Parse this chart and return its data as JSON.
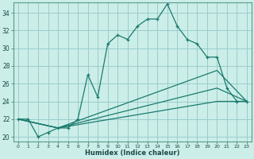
{
  "xlabel": "Humidex (Indice chaleur)",
  "bg_color": "#cceee8",
  "grid_color": "#99cccc",
  "line_color": "#1a7a6e",
  "xlim": [
    -0.5,
    23.5
  ],
  "ylim": [
    19.5,
    35.2
  ],
  "xticks": [
    0,
    1,
    2,
    3,
    4,
    5,
    6,
    7,
    8,
    9,
    10,
    11,
    12,
    13,
    14,
    15,
    16,
    17,
    18,
    19,
    20,
    21,
    22,
    23
  ],
  "yticks": [
    20,
    22,
    24,
    26,
    28,
    30,
    32,
    34
  ],
  "series_main": {
    "x": [
      0,
      1,
      2,
      3,
      4,
      5,
      6,
      7,
      8,
      9,
      10,
      11,
      12,
      13,
      14,
      15,
      16,
      17,
      18,
      19,
      20,
      21,
      22,
      23
    ],
    "y": [
      22,
      22,
      20,
      20.5,
      21,
      21,
      22,
      27,
      24.5,
      30.5,
      31.5,
      31,
      32.5,
      33.3,
      33.3,
      35,
      32.5,
      31,
      30.5,
      29.0,
      29.0,
      25.5,
      24,
      24
    ]
  },
  "series_lines": [
    {
      "x": [
        0,
        4,
        20,
        23
      ],
      "y": [
        22,
        21,
        27.5,
        24
      ]
    },
    {
      "x": [
        0,
        4,
        20,
        23
      ],
      "y": [
        22,
        21,
        25.5,
        24
      ]
    },
    {
      "x": [
        0,
        4,
        20,
        23
      ],
      "y": [
        22,
        21,
        24.0,
        24
      ]
    }
  ]
}
